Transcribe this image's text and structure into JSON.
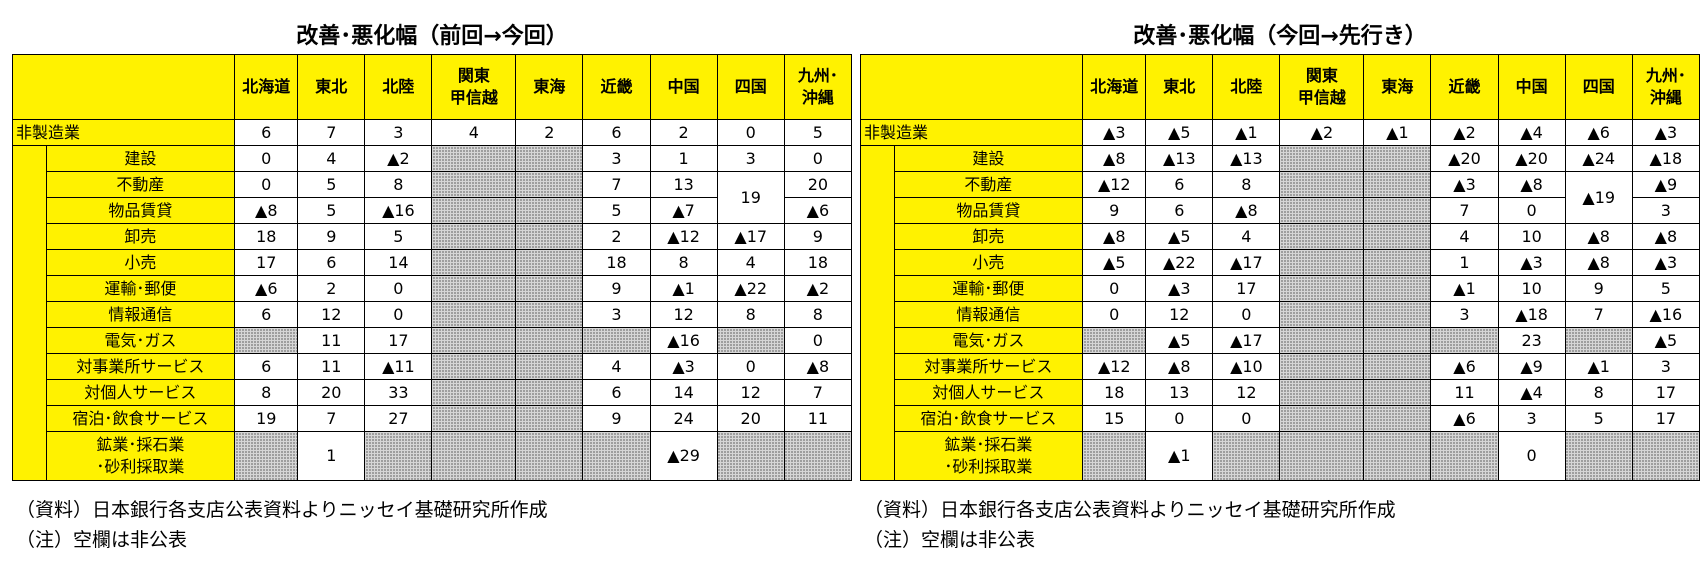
{
  "chart_data": [
    {
      "type": "table",
      "title": "改善･悪化幅（前回→今回）",
      "columns": [
        "北海道",
        "東北",
        "北陸",
        "関東\n甲信越",
        "東海",
        "近畿",
        "中国",
        "四国",
        "九州･\n沖縄"
      ],
      "rows": [
        {
          "label": "非製造業",
          "total": true,
          "cells": [
            "6",
            "7",
            "3",
            "4",
            "2",
            "6",
            "2",
            "0",
            "5"
          ]
        },
        {
          "label": "建設",
          "cells": [
            "0",
            "4",
            "▲2",
            null,
            null,
            "3",
            "1",
            "3",
            "0"
          ]
        },
        {
          "label": "不動産",
          "cells": [
            "0",
            "5",
            "8",
            null,
            null,
            "7",
            "13",
            {
              "v": "19",
              "rowspan": 2
            },
            "20"
          ]
        },
        {
          "label": "物品賃貸",
          "cells": [
            "▲8",
            "5",
            "▲16",
            null,
            null,
            "5",
            "▲7",
            "▲6"
          ]
        },
        {
          "label": "卸売",
          "cells": [
            "18",
            "9",
            "5",
            null,
            null,
            "2",
            "▲12",
            "▲17",
            "9"
          ]
        },
        {
          "label": "小売",
          "cells": [
            "17",
            "6",
            "14",
            null,
            null,
            "18",
            "8",
            "4",
            "18"
          ]
        },
        {
          "label": "運輸･郵便",
          "cells": [
            "▲6",
            "2",
            "0",
            null,
            null,
            "9",
            "▲1",
            "▲22",
            "▲2"
          ]
        },
        {
          "label": "情報通信",
          "cells": [
            "6",
            "12",
            "0",
            null,
            null,
            "3",
            "12",
            "8",
            "8"
          ]
        },
        {
          "label": "電気･ガス",
          "cells": [
            null,
            "11",
            "17",
            null,
            null,
            null,
            "▲16",
            null,
            "0"
          ]
        },
        {
          "label": "対事業所サービス",
          "cells": [
            "6",
            "11",
            "▲11",
            null,
            null,
            "4",
            "▲3",
            "0",
            "▲8"
          ]
        },
        {
          "label": "対個人サービス",
          "cells": [
            "8",
            "20",
            "33",
            null,
            null,
            "6",
            "14",
            "12",
            "7"
          ]
        },
        {
          "label": "宿泊･飲食サービス",
          "cells": [
            "19",
            "7",
            "27",
            null,
            null,
            "9",
            "24",
            "20",
            "11"
          ]
        },
        {
          "label": "鉱業･採石業\n･砂利採取業",
          "tall": true,
          "cells": [
            null,
            "1",
            null,
            null,
            null,
            null,
            "▲29",
            null,
            null
          ]
        }
      ],
      "notes": [
        "（資料）日本銀行各支店公表資料よりニッセイ基礎研究所作成",
        "（注）空欄は非公表"
      ]
    },
    {
      "type": "table",
      "title": "改善･悪化幅（今回→先行き）",
      "columns": [
        "北海道",
        "東北",
        "北陸",
        "関東\n甲信越",
        "東海",
        "近畿",
        "中国",
        "四国",
        "九州･\n沖縄"
      ],
      "rows": [
        {
          "label": "非製造業",
          "total": true,
          "cells": [
            "▲3",
            "▲5",
            "▲1",
            "▲2",
            "▲1",
            "▲2",
            "▲4",
            "▲6",
            "▲3"
          ]
        },
        {
          "label": "建設",
          "cells": [
            "▲8",
            "▲13",
            "▲13",
            null,
            null,
            "▲20",
            "▲20",
            "▲24",
            "▲18"
          ]
        },
        {
          "label": "不動産",
          "cells": [
            "▲12",
            "6",
            "8",
            null,
            null,
            "▲3",
            "▲8",
            {
              "v": "▲19",
              "rowspan": 2
            },
            "▲9"
          ]
        },
        {
          "label": "物品賃貸",
          "cells": [
            "9",
            "6",
            "▲8",
            null,
            null,
            "7",
            "0",
            "3"
          ]
        },
        {
          "label": "卸売",
          "cells": [
            "▲8",
            "▲5",
            "4",
            null,
            null,
            "4",
            "10",
            "▲8",
            "▲8"
          ]
        },
        {
          "label": "小売",
          "cells": [
            "▲5",
            "▲22",
            "▲17",
            null,
            null,
            "1",
            "▲3",
            "▲8",
            "▲3"
          ]
        },
        {
          "label": "運輸･郵便",
          "cells": [
            "0",
            "▲3",
            "17",
            null,
            null,
            "▲1",
            "10",
            "9",
            "5"
          ]
        },
        {
          "label": "情報通信",
          "cells": [
            "0",
            "12",
            "0",
            null,
            null,
            "3",
            "▲18",
            "7",
            "▲16"
          ]
        },
        {
          "label": "電気･ガス",
          "cells": [
            null,
            "▲5",
            "▲17",
            null,
            null,
            null,
            "23",
            null,
            "▲5"
          ]
        },
        {
          "label": "対事業所サービス",
          "cells": [
            "▲12",
            "▲8",
            "▲10",
            null,
            null,
            "▲6",
            "▲9",
            "▲1",
            "3"
          ]
        },
        {
          "label": "対個人サービス",
          "cells": [
            "18",
            "13",
            "12",
            null,
            null,
            "11",
            "▲4",
            "8",
            "17"
          ]
        },
        {
          "label": "宿泊･飲食サービス",
          "cells": [
            "15",
            "0",
            "0",
            null,
            null,
            "▲6",
            "3",
            "5",
            "17"
          ]
        },
        {
          "label": "鉱業･採石業\n･砂利採取業",
          "tall": true,
          "cells": [
            null,
            "▲1",
            null,
            null,
            null,
            null,
            "0",
            null,
            null
          ]
        }
      ],
      "notes": [
        "（資料）日本銀行各支店公表資料よりニッセイ基礎研究所作成",
        "（注）空欄は非公表"
      ]
    }
  ]
}
